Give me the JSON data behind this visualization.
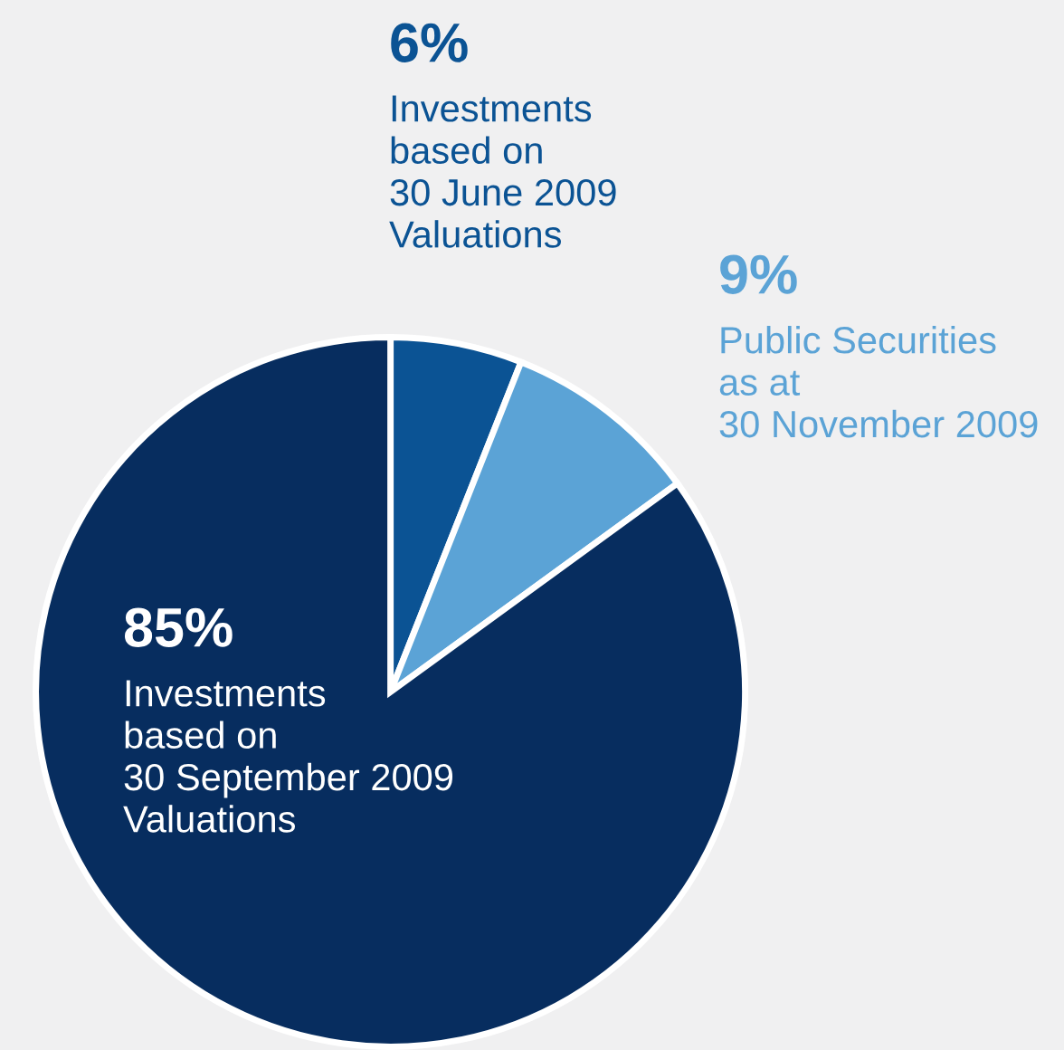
{
  "chart_data": {
    "type": "pie",
    "categories": [
      "Investments\nbased on\n30 June 2009\nValuations",
      "Public Securities\nas at\n30 November 2009",
      "Investments\nbased on\n30 September 2009\nValuations"
    ],
    "values": [
      6,
      9,
      85
    ],
    "value_labels": [
      "6%",
      "9%",
      "85%"
    ],
    "colors": [
      "#0b5394",
      "#5ba3d6",
      "#072d5f"
    ]
  }
}
